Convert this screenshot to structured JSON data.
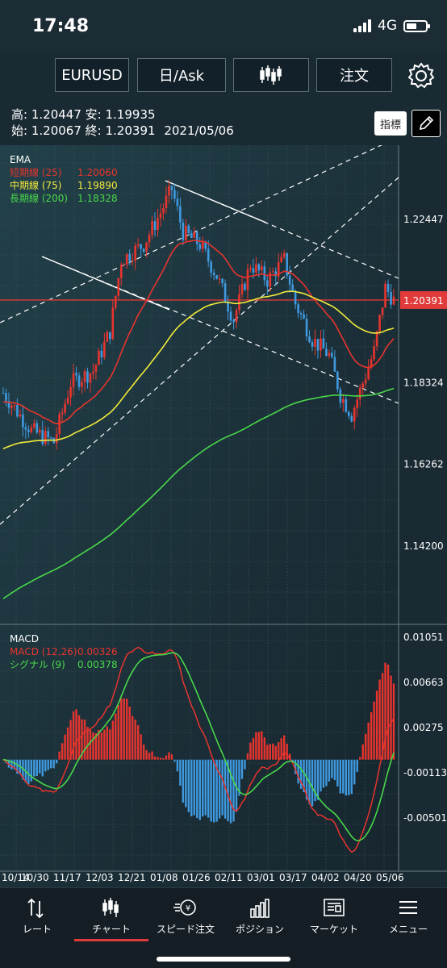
{
  "status": {
    "time": "17:48",
    "network": "4G"
  },
  "toolbar": {
    "symbol": "EURUSD",
    "period": "日/Ask",
    "order": "注文"
  },
  "ohlc": {
    "high_label": "高:",
    "high": "1.20447",
    "low_label": "安:",
    "low": "1.19935",
    "open_label": "始:",
    "open": "1.20067",
    "close_label": "終:",
    "close": "1.20391",
    "date": "2021/05/06"
  },
  "buttons": {
    "indicator": "指標"
  },
  "ema": {
    "title": "EMA",
    "rows": [
      {
        "label": "短期線 (25)",
        "value": "1.20060",
        "color": "#e8342e"
      },
      {
        "label": "中期線 (75)",
        "value": "1.19890",
        "color": "#f2ea3b"
      },
      {
        "label": "長期線 (200)",
        "value": "1.18328",
        "color": "#49d84a"
      }
    ]
  },
  "price_axis": [
    "1.22447",
    "1.18324",
    "1.16262",
    "1.14200"
  ],
  "current_price": "1.20391",
  "macd": {
    "title": "MACD",
    "rows": [
      {
        "label": "MACD (12,26)",
        "value": "0.00326",
        "color": "#e8342e"
      },
      {
        "label": "シグナル (9)",
        "value": "0.00378",
        "color": "#49d84a"
      }
    ],
    "axis": [
      "0.01051",
      "0.00663",
      "0.00275",
      "-0.00113",
      "-0.00501"
    ]
  },
  "date_axis": [
    "10/14",
    "10/30",
    "11/17",
    "12/03",
    "12/21",
    "01/08",
    "01/26",
    "02/11",
    "03/01",
    "03/17",
    "04/02",
    "04/20",
    "05/06"
  ],
  "nav": [
    {
      "label": "レート",
      "icon": "rate-icon"
    },
    {
      "label": "チャート",
      "icon": "chart-icon"
    },
    {
      "label": "スピード注文",
      "icon": "speed-order-icon"
    },
    {
      "label": "ポジション",
      "icon": "position-icon"
    },
    {
      "label": "マーケット",
      "icon": "market-icon"
    },
    {
      "label": "メニュー",
      "icon": "menu-icon"
    }
  ],
  "colors": {
    "up": "#e8342e",
    "down": "#3f9ae0",
    "short_ema": "#e8342e",
    "mid_ema": "#f2ea3b",
    "long_ema": "#49d84a",
    "price_line": "#e03a3a"
  }
}
